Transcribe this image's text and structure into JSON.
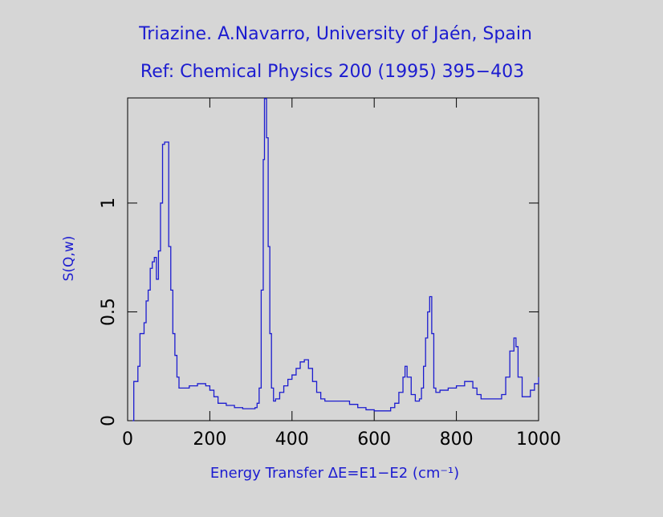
{
  "chart_data": {
    "type": "line",
    "step": true,
    "title": "Triazine. A.Navarro, University of Jaén, Spain",
    "subtitle": "Ref: Chemical Physics 200 (1995) 395−403",
    "x_label": "Energy Transfer ΔE=E1−E2 (cm⁻¹)",
    "y_label": "S(Q,w)",
    "color": "#1c1cd0",
    "x": [
      12,
      15,
      20,
      25,
      30,
      35,
      40,
      45,
      50,
      55,
      60,
      65,
      70,
      75,
      80,
      85,
      90,
      95,
      100,
      105,
      110,
      115,
      120,
      125,
      130,
      150,
      170,
      190,
      200,
      210,
      220,
      240,
      260,
      280,
      300,
      310,
      315,
      320,
      325,
      330,
      333,
      338,
      342,
      346,
      350,
      355,
      360,
      370,
      380,
      390,
      400,
      410,
      420,
      430,
      440,
      450,
      460,
      470,
      480,
      500,
      520,
      540,
      560,
      580,
      600,
      620,
      640,
      650,
      660,
      670,
      675,
      680,
      690,
      700,
      710,
      715,
      720,
      725,
      730,
      735,
      740,
      745,
      750,
      760,
      780,
      800,
      820,
      830,
      840,
      850,
      860,
      880,
      900,
      910,
      920,
      930,
      940,
      945,
      950,
      960,
      970,
      980,
      990,
      1000
    ],
    "values": [
      0,
      0.18,
      0.18,
      0.25,
      0.4,
      0.4,
      0.45,
      0.55,
      0.6,
      0.7,
      0.73,
      0.75,
      0.65,
      0.78,
      1.0,
      1.27,
      1.28,
      1.28,
      0.8,
      0.6,
      0.4,
      0.3,
      0.2,
      0.15,
      0.15,
      0.16,
      0.17,
      0.16,
      0.14,
      0.11,
      0.08,
      0.07,
      0.06,
      0.055,
      0.055,
      0.06,
      0.08,
      0.15,
      0.6,
      1.2,
      1.48,
      1.3,
      0.8,
      0.4,
      0.15,
      0.09,
      0.1,
      0.13,
      0.16,
      0.19,
      0.21,
      0.24,
      0.27,
      0.28,
      0.24,
      0.18,
      0.13,
      0.1,
      0.09,
      0.09,
      0.09,
      0.075,
      0.06,
      0.05,
      0.045,
      0.045,
      0.06,
      0.08,
      0.13,
      0.2,
      0.25,
      0.2,
      0.12,
      0.09,
      0.1,
      0.15,
      0.25,
      0.38,
      0.5,
      0.57,
      0.4,
      0.15,
      0.13,
      0.14,
      0.15,
      0.16,
      0.18,
      0.18,
      0.15,
      0.12,
      0.1,
      0.1,
      0.1,
      0.12,
      0.2,
      0.32,
      0.38,
      0.34,
      0.2,
      0.11,
      0.11,
      0.14,
      0.17,
      0.2
    ],
    "xlim": [
      0,
      1000
    ],
    "xticks": [
      0,
      200,
      400,
      600,
      800,
      1000
    ],
    "ylim": [
      0,
      1.483
    ],
    "yticks": [
      0,
      0.5,
      1
    ]
  }
}
